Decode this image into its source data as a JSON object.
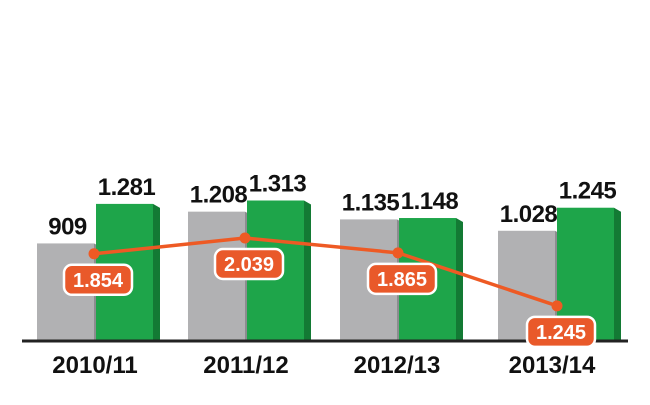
{
  "chart_data": {
    "type": "bar",
    "categories": [
      "2010/11",
      "2011/12",
      "2012/13",
      "2013/14"
    ],
    "series": [
      {
        "values": [
          909,
          1208,
          1135,
          1028
        ],
        "color": "#b1b1b3",
        "shade": "#8c8c8f",
        "labels": [
          "909",
          "1.208",
          "1.135",
          "1.028"
        ]
      },
      {
        "values": [
          1281,
          1313,
          1148,
          1245
        ],
        "color": "#1ea54a",
        "shade": "#137a34",
        "labels": [
          "1.281",
          "1.313",
          "1.148",
          "1.245"
        ]
      }
    ],
    "line_series": {
      "values": [
        1854,
        2039,
        1865,
        1245
      ],
      "labels": [
        "1.854",
        "2.039",
        "1.865",
        "1.245"
      ],
      "color": "#ee5a24"
    },
    "ylim": [
      0,
      2100
    ],
    "grid": false,
    "title": "",
    "xlabel": "",
    "ylabel": ""
  }
}
